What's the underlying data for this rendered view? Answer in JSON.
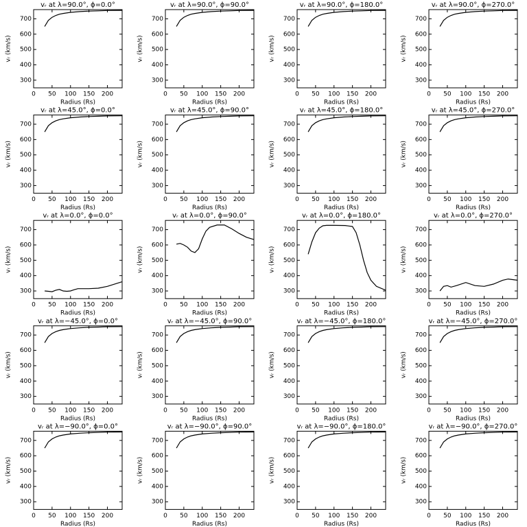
{
  "chart_data": [
    {
      "type": "line",
      "title": "vᵣ at λ=90.0°, ϕ=0.0°",
      "xlabel": "Radius (Rs)",
      "ylabel": "vᵣ (km/s)",
      "x": [
        30,
        40,
        50,
        60,
        70,
        80,
        100,
        125,
        150,
        175,
        200,
        240
      ],
      "values": [
        650,
        690,
        710,
        722,
        730,
        735,
        742,
        747,
        750,
        752,
        754,
        755
      ],
      "xlim": [
        0,
        240
      ],
      "ylim": [
        250,
        760
      ],
      "xticks": [
        0,
        50,
        100,
        150,
        200
      ],
      "yticks": [
        300,
        400,
        500,
        600,
        700
      ],
      "color": "#000000"
    },
    {
      "type": "line",
      "title": "vᵣ at λ=90.0°, ϕ=90.0°",
      "xlabel": "Radius (Rs)",
      "ylabel": "vᵣ (km/s)",
      "x": [
        30,
        40,
        50,
        60,
        70,
        80,
        100,
        125,
        150,
        175,
        200,
        240
      ],
      "values": [
        650,
        690,
        710,
        722,
        730,
        735,
        742,
        747,
        750,
        752,
        754,
        755
      ],
      "xlim": [
        0,
        240
      ],
      "ylim": [
        250,
        760
      ],
      "xticks": [
        0,
        50,
        100,
        150,
        200
      ],
      "yticks": [
        300,
        400,
        500,
        600,
        700
      ],
      "color": "#000000"
    },
    {
      "type": "line",
      "title": "vᵣ at λ=90.0°, ϕ=180.0°",
      "xlabel": "Radius (Rs)",
      "ylabel": "vᵣ (km/s)",
      "x": [
        30,
        40,
        50,
        60,
        70,
        80,
        100,
        125,
        150,
        175,
        200,
        240
      ],
      "values": [
        650,
        690,
        710,
        722,
        730,
        735,
        742,
        747,
        750,
        752,
        754,
        755
      ],
      "xlim": [
        0,
        240
      ],
      "ylim": [
        250,
        760
      ],
      "xticks": [
        0,
        50,
        100,
        150,
        200
      ],
      "yticks": [
        300,
        400,
        500,
        600,
        700
      ],
      "color": "#000000"
    },
    {
      "type": "line",
      "title": "vᵣ at λ=90.0°, ϕ=270.0°",
      "xlabel": "Radius (Rs)",
      "ylabel": "vᵣ (km/s)",
      "x": [
        30,
        40,
        50,
        60,
        70,
        80,
        100,
        125,
        150,
        175,
        200,
        240
      ],
      "values": [
        650,
        690,
        710,
        722,
        730,
        735,
        742,
        747,
        750,
        752,
        754,
        755
      ],
      "xlim": [
        0,
        240
      ],
      "ylim": [
        250,
        760
      ],
      "xticks": [
        0,
        50,
        100,
        150,
        200
      ],
      "yticks": [
        300,
        400,
        500,
        600,
        700
      ],
      "color": "#000000"
    },
    {
      "type": "line",
      "title": "vᵣ at λ=45.0°, ϕ=0.0°",
      "xlabel": "Radius (Rs)",
      "ylabel": "vᵣ (km/s)",
      "x": [
        30,
        40,
        50,
        60,
        70,
        80,
        100,
        125,
        150,
        175,
        200,
        240
      ],
      "values": [
        650,
        690,
        710,
        722,
        730,
        735,
        742,
        747,
        750,
        752,
        754,
        755
      ],
      "xlim": [
        0,
        240
      ],
      "ylim": [
        250,
        760
      ],
      "xticks": [
        0,
        50,
        100,
        150,
        200
      ],
      "yticks": [
        300,
        400,
        500,
        600,
        700
      ],
      "color": "#000000"
    },
    {
      "type": "line",
      "title": "vᵣ at λ=45.0°, ϕ=90.0°",
      "xlabel": "Radius (Rs)",
      "ylabel": "vᵣ (km/s)",
      "x": [
        30,
        40,
        50,
        60,
        70,
        80,
        100,
        125,
        150,
        175,
        200,
        240
      ],
      "values": [
        650,
        690,
        710,
        722,
        730,
        735,
        742,
        747,
        750,
        752,
        754,
        755
      ],
      "xlim": [
        0,
        240
      ],
      "ylim": [
        250,
        760
      ],
      "xticks": [
        0,
        50,
        100,
        150,
        200
      ],
      "yticks": [
        300,
        400,
        500,
        600,
        700
      ],
      "color": "#000000"
    },
    {
      "type": "line",
      "title": "vᵣ at λ=45.0°, ϕ=180.0°",
      "xlabel": "Radius (Rs)",
      "ylabel": "vᵣ (km/s)",
      "x": [
        30,
        40,
        50,
        60,
        70,
        80,
        100,
        125,
        150,
        175,
        200,
        240
      ],
      "values": [
        650,
        690,
        710,
        722,
        730,
        735,
        742,
        747,
        750,
        752,
        754,
        755
      ],
      "xlim": [
        0,
        240
      ],
      "ylim": [
        250,
        760
      ],
      "xticks": [
        0,
        50,
        100,
        150,
        200
      ],
      "yticks": [
        300,
        400,
        500,
        600,
        700
      ],
      "color": "#000000"
    },
    {
      "type": "line",
      "title": "vᵣ at λ=45.0°, ϕ=270.0°",
      "xlabel": "Radius (Rs)",
      "ylabel": "vᵣ (km/s)",
      "x": [
        30,
        40,
        50,
        60,
        70,
        80,
        100,
        125,
        150,
        175,
        200,
        240
      ],
      "values": [
        650,
        690,
        710,
        722,
        730,
        735,
        742,
        747,
        750,
        752,
        754,
        755
      ],
      "xlim": [
        0,
        240
      ],
      "ylim": [
        250,
        760
      ],
      "xticks": [
        0,
        50,
        100,
        150,
        200
      ],
      "yticks": [
        300,
        400,
        500,
        600,
        700
      ],
      "color": "#000000"
    },
    {
      "type": "line",
      "title": "vᵣ at λ=0.0°, ϕ=0.0°",
      "xlabel": "Radius (Rs)",
      "ylabel": "vᵣ (km/s)",
      "x": [
        30,
        40,
        50,
        60,
        70,
        80,
        90,
        100,
        110,
        120,
        150,
        175,
        200,
        240
      ],
      "values": [
        300,
        298,
        295,
        305,
        310,
        300,
        298,
        300,
        308,
        315,
        315,
        318,
        330,
        360
      ],
      "xlim": [
        0,
        240
      ],
      "ylim": [
        250,
        760
      ],
      "xticks": [
        0,
        50,
        100,
        150,
        200
      ],
      "yticks": [
        300,
        400,
        500,
        600,
        700
      ],
      "color": "#000000"
    },
    {
      "type": "line",
      "title": "vᵣ at λ=0.0°, ϕ=90.0°",
      "xlabel": "Radius (Rs)",
      "ylabel": "vᵣ (km/s)",
      "x": [
        30,
        40,
        50,
        60,
        70,
        80,
        90,
        100,
        110,
        120,
        140,
        160,
        180,
        200,
        220,
        240
      ],
      "values": [
        605,
        610,
        600,
        585,
        560,
        550,
        575,
        640,
        690,
        715,
        730,
        730,
        705,
        675,
        650,
        635
      ],
      "xlim": [
        0,
        240
      ],
      "ylim": [
        250,
        760
      ],
      "xticks": [
        0,
        50,
        100,
        150,
        200
      ],
      "yticks": [
        300,
        400,
        500,
        600,
        700
      ],
      "color": "#000000"
    },
    {
      "type": "line",
      "title": "vᵣ at λ=0.0°, ϕ=180.0°",
      "xlabel": "Radius (Rs)",
      "ylabel": "vᵣ (km/s)",
      "x": [
        30,
        40,
        50,
        60,
        70,
        80,
        100,
        130,
        150,
        160,
        170,
        180,
        190,
        200,
        215,
        240
      ],
      "values": [
        540,
        620,
        680,
        710,
        725,
        728,
        728,
        727,
        720,
        680,
        600,
        500,
        420,
        370,
        330,
        305
      ],
      "xlim": [
        0,
        240
      ],
      "ylim": [
        250,
        760
      ],
      "xticks": [
        0,
        50,
        100,
        150,
        200
      ],
      "yticks": [
        300,
        400,
        500,
        600,
        700
      ],
      "color": "#000000"
    },
    {
      "type": "line",
      "title": "vᵣ at λ=0.0°, ϕ=270.0°",
      "xlabel": "Radius (Rs)",
      "ylabel": "vᵣ (km/s)",
      "x": [
        30,
        40,
        50,
        60,
        75,
        100,
        125,
        150,
        175,
        200,
        215,
        240
      ],
      "values": [
        300,
        330,
        335,
        325,
        335,
        355,
        335,
        330,
        345,
        370,
        378,
        370
      ],
      "xlim": [
        0,
        240
      ],
      "ylim": [
        250,
        760
      ],
      "xticks": [
        0,
        50,
        100,
        150,
        200
      ],
      "yticks": [
        300,
        400,
        500,
        600,
        700
      ],
      "color": "#000000"
    },
    {
      "type": "line",
      "title": "vᵣ at λ=−45.0°, ϕ=0.0°",
      "xlabel": "Radius (Rs)",
      "ylabel": "vᵣ (km/s)",
      "x": [
        30,
        40,
        50,
        60,
        70,
        80,
        100,
        125,
        150,
        175,
        200,
        240
      ],
      "values": [
        650,
        690,
        710,
        722,
        730,
        735,
        742,
        747,
        750,
        752,
        754,
        755
      ],
      "xlim": [
        0,
        240
      ],
      "ylim": [
        250,
        760
      ],
      "xticks": [
        0,
        50,
        100,
        150,
        200
      ],
      "yticks": [
        300,
        400,
        500,
        600,
        700
      ],
      "color": "#000000"
    },
    {
      "type": "line",
      "title": "vᵣ at λ=−45.0°, ϕ=90.0°",
      "xlabel": "Radius (Rs)",
      "ylabel": "vᵣ (km/s)",
      "x": [
        30,
        40,
        50,
        60,
        70,
        80,
        100,
        125,
        150,
        175,
        200,
        240
      ],
      "values": [
        650,
        690,
        710,
        722,
        730,
        735,
        742,
        747,
        750,
        752,
        754,
        755
      ],
      "xlim": [
        0,
        240
      ],
      "ylim": [
        250,
        760
      ],
      "xticks": [
        0,
        50,
        100,
        150,
        200
      ],
      "yticks": [
        300,
        400,
        500,
        600,
        700
      ],
      "color": "#000000"
    },
    {
      "type": "line",
      "title": "vᵣ at λ=−45.0°, ϕ=180.0°",
      "xlabel": "Radius (Rs)",
      "ylabel": "vᵣ (km/s)",
      "x": [
        30,
        40,
        50,
        60,
        70,
        80,
        100,
        125,
        150,
        175,
        200,
        240
      ],
      "values": [
        650,
        690,
        710,
        722,
        730,
        735,
        742,
        747,
        750,
        752,
        754,
        755
      ],
      "xlim": [
        0,
        240
      ],
      "ylim": [
        250,
        760
      ],
      "xticks": [
        0,
        50,
        100,
        150,
        200
      ],
      "yticks": [
        300,
        400,
        500,
        600,
        700
      ],
      "color": "#000000"
    },
    {
      "type": "line",
      "title": "vᵣ at λ=−45.0°, ϕ=270.0°",
      "xlabel": "Radius (Rs)",
      "ylabel": "vᵣ (km/s)",
      "x": [
        30,
        40,
        50,
        60,
        70,
        80,
        100,
        125,
        150,
        175,
        200,
        240
      ],
      "values": [
        650,
        690,
        710,
        722,
        730,
        735,
        742,
        747,
        750,
        752,
        754,
        755
      ],
      "xlim": [
        0,
        240
      ],
      "ylim": [
        250,
        760
      ],
      "xticks": [
        0,
        50,
        100,
        150,
        200
      ],
      "yticks": [
        300,
        400,
        500,
        600,
        700
      ],
      "color": "#000000"
    },
    {
      "type": "line",
      "title": "vᵣ at λ=−90.0°, ϕ=0.0°",
      "xlabel": "Radius (Rs)",
      "ylabel": "vᵣ (km/s)",
      "x": [
        30,
        40,
        50,
        60,
        70,
        80,
        100,
        125,
        150,
        175,
        200,
        240
      ],
      "values": [
        650,
        690,
        710,
        722,
        730,
        735,
        742,
        747,
        750,
        752,
        754,
        755
      ],
      "xlim": [
        0,
        240
      ],
      "ylim": [
        250,
        760
      ],
      "xticks": [
        0,
        50,
        100,
        150,
        200
      ],
      "yticks": [
        300,
        400,
        500,
        600,
        700
      ],
      "color": "#000000"
    },
    {
      "type": "line",
      "title": "vᵣ at λ=−90.0°, ϕ=90.0°",
      "xlabel": "Radius (Rs)",
      "ylabel": "vᵣ (km/s)",
      "x": [
        30,
        40,
        50,
        60,
        70,
        80,
        100,
        125,
        150,
        175,
        200,
        240
      ],
      "values": [
        650,
        690,
        710,
        722,
        730,
        735,
        742,
        747,
        750,
        752,
        754,
        755
      ],
      "xlim": [
        0,
        240
      ],
      "ylim": [
        250,
        760
      ],
      "xticks": [
        0,
        50,
        100,
        150,
        200
      ],
      "yticks": [
        300,
        400,
        500,
        600,
        700
      ],
      "color": "#000000"
    },
    {
      "type": "line",
      "title": "vᵣ at λ=−90.0°, ϕ=180.0°",
      "xlabel": "Radius (Rs)",
      "ylabel": "vᵣ (km/s)",
      "x": [
        30,
        40,
        50,
        60,
        70,
        80,
        100,
        125,
        150,
        175,
        200,
        240
      ],
      "values": [
        650,
        690,
        710,
        722,
        730,
        735,
        742,
        747,
        750,
        752,
        754,
        755
      ],
      "xlim": [
        0,
        240
      ],
      "ylim": [
        250,
        760
      ],
      "xticks": [
        0,
        50,
        100,
        150,
        200
      ],
      "yticks": [
        300,
        400,
        500,
        600,
        700
      ],
      "color": "#000000"
    },
    {
      "type": "line",
      "title": "vᵣ at λ=−90.0°, ϕ=270.0°",
      "xlabel": "Radius (Rs)",
      "ylabel": "vᵣ (km/s)",
      "x": [
        30,
        40,
        50,
        60,
        70,
        80,
        100,
        125,
        150,
        175,
        200,
        240
      ],
      "values": [
        650,
        690,
        710,
        722,
        730,
        735,
        742,
        747,
        750,
        752,
        754,
        755
      ],
      "xlim": [
        0,
        240
      ],
      "ylim": [
        250,
        760
      ],
      "xticks": [
        0,
        50,
        100,
        150,
        200
      ],
      "yticks": [
        300,
        400,
        500,
        600,
        700
      ],
      "color": "#000000"
    }
  ]
}
